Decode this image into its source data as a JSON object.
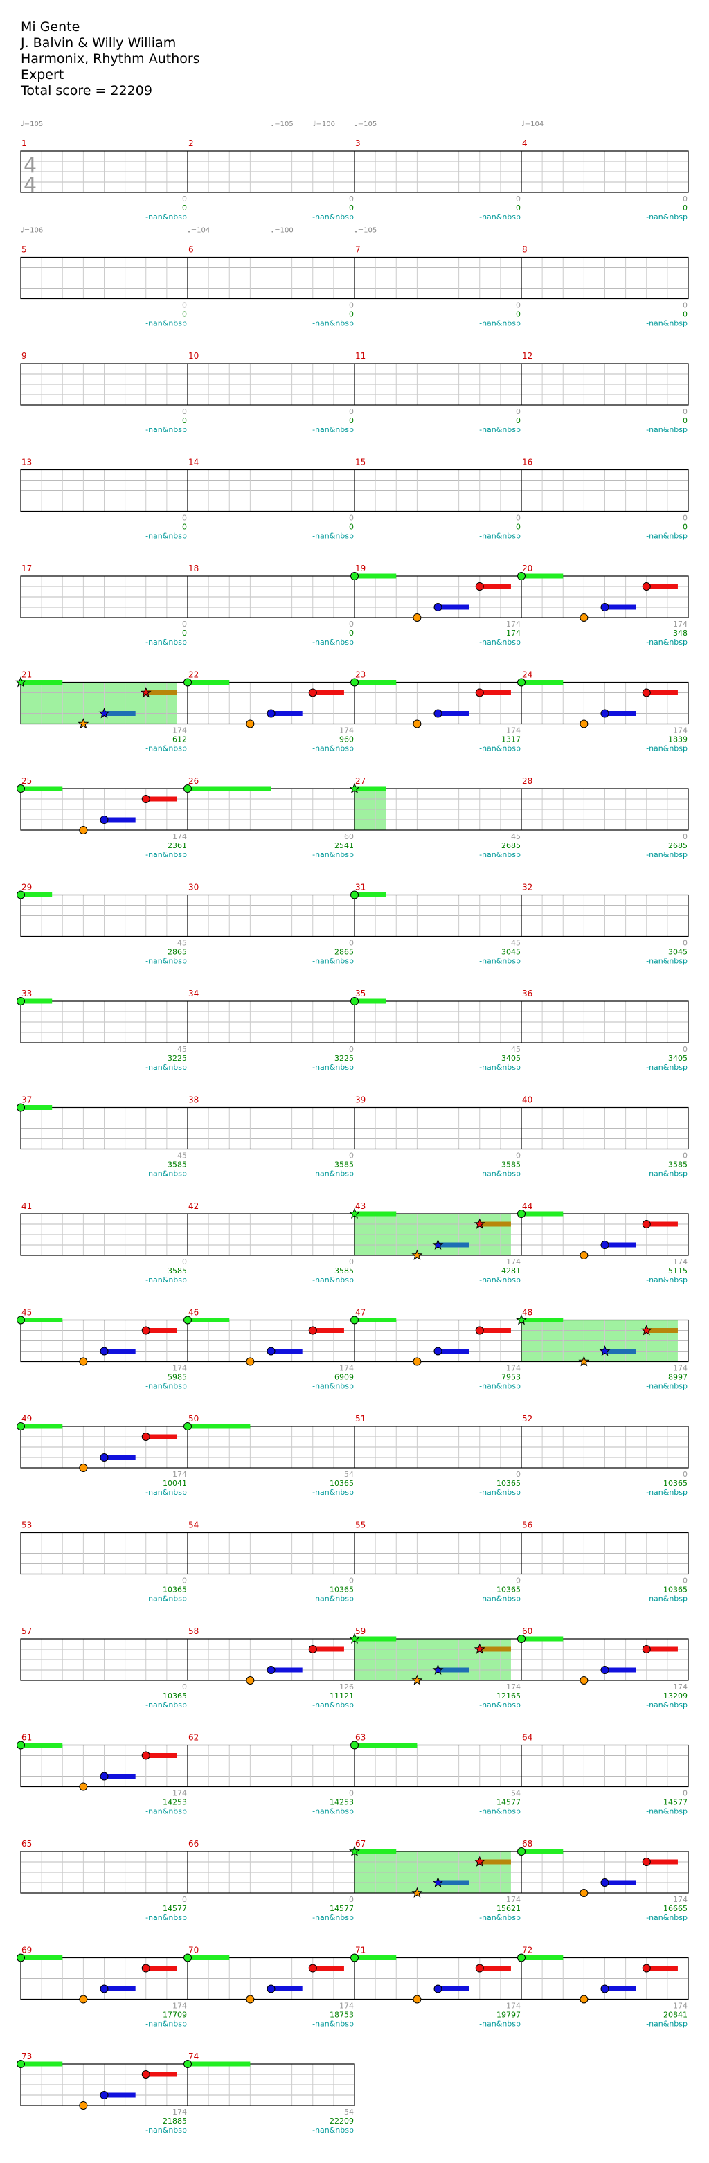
{
  "song": {
    "title": "Mi Gente",
    "artist": "J. Balvin & Willy William",
    "charter": "Harmonix, Rhythm Authors",
    "difficulty": "Expert",
    "total_score_text": "Total score = 22209"
  },
  "time_signature": "4/4",
  "colors": {
    "green": "#22ee22",
    "red": "#ee1111",
    "yellow": "#eeb800",
    "blue": "#1111dd",
    "orange": "#ff9900",
    "star_sustain_top": "#b8860b",
    "star_sustain_low": "#1e6eb4",
    "overdrive": "#88ee88",
    "measure_num": "#cc0000",
    "score": "#008000",
    "sub": "#009999",
    "tempo": "#888888",
    "staff": "#000000"
  },
  "tempo_marks": [
    {
      "measure": 1,
      "beat": 0,
      "label": "♩=105"
    },
    {
      "measure": 2,
      "beat": 2.0,
      "label": "♩=105"
    },
    {
      "measure": 2,
      "beat": 3.0,
      "label": "♩=100"
    },
    {
      "measure": 3,
      "beat": 0,
      "label": "♩=105"
    },
    {
      "measure": 4,
      "beat": 0,
      "label": "♩=104"
    },
    {
      "measure": 5,
      "beat": 0,
      "label": "♩=106"
    },
    {
      "measure": 6,
      "beat": 0,
      "label": "♩=104"
    },
    {
      "measure": 6,
      "beat": 2.0,
      "label": "♩=100"
    },
    {
      "measure": 7,
      "beat": 0,
      "label": "♩=105"
    }
  ],
  "sub_label": "-nan&nbsp",
  "measures": [
    {
      "n": 1,
      "t": 0,
      "s": "0"
    },
    {
      "n": 2,
      "t": 0,
      "s": "0"
    },
    {
      "n": 3,
      "t": 0,
      "s": "0"
    },
    {
      "n": 4,
      "t": 0,
      "s": "0"
    },
    {
      "n": 5,
      "t": 0,
      "s": "0"
    },
    {
      "n": 6,
      "t": 0,
      "s": "0"
    },
    {
      "n": 7,
      "t": 0,
      "s": "0"
    },
    {
      "n": 8,
      "t": 0,
      "s": "0"
    },
    {
      "n": 9,
      "t": 0,
      "s": "0"
    },
    {
      "n": 10,
      "t": 0,
      "s": "0"
    },
    {
      "n": 11,
      "t": 0,
      "s": "0"
    },
    {
      "n": 12,
      "t": 0,
      "s": "0"
    },
    {
      "n": 13,
      "t": 0,
      "s": "0"
    },
    {
      "n": 14,
      "t": 0,
      "s": "0"
    },
    {
      "n": 15,
      "t": 0,
      "s": "0"
    },
    {
      "n": 16,
      "t": 0,
      "s": "0"
    },
    {
      "n": 17,
      "t": 0,
      "s": "0"
    },
    {
      "n": 18,
      "t": 0,
      "s": "0"
    },
    {
      "n": 19,
      "t": 174,
      "s": "174"
    },
    {
      "n": 20,
      "t": 174,
      "s": "348"
    },
    {
      "n": 21,
      "t": 174,
      "s": "612"
    },
    {
      "n": 22,
      "t": 174,
      "s": "960"
    },
    {
      "n": 23,
      "t": 174,
      "s": "1317"
    },
    {
      "n": 24,
      "t": 174,
      "s": "1839"
    },
    {
      "n": 25,
      "t": 174,
      "s": "2361"
    },
    {
      "n": 26,
      "t": 60,
      "s": "2541"
    },
    {
      "n": 27,
      "t": 45,
      "s": "2685"
    },
    {
      "n": 28,
      "t": 0,
      "s": "2685"
    },
    {
      "n": 29,
      "t": 45,
      "s": "2865"
    },
    {
      "n": 30,
      "t": 0,
      "s": "2865"
    },
    {
      "n": 31,
      "t": 45,
      "s": "3045"
    },
    {
      "n": 32,
      "t": 0,
      "s": "3045"
    },
    {
      "n": 33,
      "t": 45,
      "s": "3225"
    },
    {
      "n": 34,
      "t": 0,
      "s": "3225"
    },
    {
      "n": 35,
      "t": 45,
      "s": "3405"
    },
    {
      "n": 36,
      "t": 0,
      "s": "3405"
    },
    {
      "n": 37,
      "t": 45,
      "s": "3585"
    },
    {
      "n": 38,
      "t": 0,
      "s": "3585"
    },
    {
      "n": 39,
      "t": 0,
      "s": "3585"
    },
    {
      "n": 40,
      "t": 0,
      "s": "3585"
    },
    {
      "n": 41,
      "t": 0,
      "s": "3585"
    },
    {
      "n": 42,
      "t": 0,
      "s": "3585"
    },
    {
      "n": 43,
      "t": 174,
      "s": "4281"
    },
    {
      "n": 44,
      "t": 174,
      "s": "5115"
    },
    {
      "n": 45,
      "t": 174,
      "s": "5985"
    },
    {
      "n": 46,
      "t": 174,
      "s": "6909"
    },
    {
      "n": 47,
      "t": 174,
      "s": "7953"
    },
    {
      "n": 48,
      "t": 174,
      "s": "8997"
    },
    {
      "n": 49,
      "t": 174,
      "s": "10041"
    },
    {
      "n": 50,
      "t": 54,
      "s": "10365"
    },
    {
      "n": 51,
      "t": 0,
      "s": "10365"
    },
    {
      "n": 52,
      "t": 0,
      "s": "10365"
    },
    {
      "n": 53,
      "t": 0,
      "s": "10365"
    },
    {
      "n": 54,
      "t": 0,
      "s": "10365"
    },
    {
      "n": 55,
      "t": 0,
      "s": "10365"
    },
    {
      "n": 56,
      "t": 0,
      "s": "10365"
    },
    {
      "n": 57,
      "t": 0,
      "s": "10365"
    },
    {
      "n": 58,
      "t": 126,
      "s": "11121"
    },
    {
      "n": 59,
      "t": 174,
      "s": "12165"
    },
    {
      "n": 60,
      "t": 174,
      "s": "13209"
    },
    {
      "n": 61,
      "t": 174,
      "s": "14253"
    },
    {
      "n": 62,
      "t": 0,
      "s": "14253"
    },
    {
      "n": 63,
      "t": 54,
      "s": "14577"
    },
    {
      "n": 64,
      "t": 0,
      "s": "14577"
    },
    {
      "n": 65,
      "t": 0,
      "s": "14577"
    },
    {
      "n": 66,
      "t": 0,
      "s": "14577"
    },
    {
      "n": 67,
      "t": 174,
      "s": "15621"
    },
    {
      "n": 68,
      "t": 174,
      "s": "16665"
    },
    {
      "n": 69,
      "t": 174,
      "s": "17709"
    },
    {
      "n": 70,
      "t": 174,
      "s": "18753"
    },
    {
      "n": 71,
      "t": 174,
      "s": "19797"
    },
    {
      "n": 72,
      "t": 174,
      "s": "20841"
    },
    {
      "n": 73,
      "t": 174,
      "s": "21885"
    },
    {
      "n": 74,
      "t": 54,
      "s": "22209"
    }
  ],
  "overdrive_phrases": [
    {
      "measure": 21,
      "from": 0,
      "to": 3.75
    },
    {
      "measure": 27,
      "from": 0,
      "to": 0.75
    },
    {
      "measure": 43,
      "from": 0,
      "to": 3.75
    },
    {
      "measure": 48,
      "from": 0,
      "to": 3.75
    },
    {
      "measure": 59,
      "from": 0,
      "to": 3.75
    },
    {
      "measure": 67,
      "from": 0,
      "to": 3.75
    }
  ],
  "notes": [
    {
      "m": 19,
      "b": 0,
      "lane": "green",
      "len": 1
    },
    {
      "m": 19,
      "b": 1.5,
      "lane": "orange"
    },
    {
      "m": 19,
      "b": 2,
      "lane": "blue",
      "len": 0.75
    },
    {
      "m": 19,
      "b": 3,
      "lane": "red",
      "len": 0.75
    },
    {
      "m": 20,
      "b": 0,
      "lane": "green",
      "len": 1
    },
    {
      "m": 20,
      "b": 1.5,
      "lane": "orange"
    },
    {
      "m": 20,
      "b": 2,
      "lane": "blue",
      "len": 0.75
    },
    {
      "m": 20,
      "b": 3,
      "lane": "red",
      "len": 0.75
    },
    {
      "m": 21,
      "b": 0,
      "lane": "green",
      "len": 1,
      "star": true
    },
    {
      "m": 21,
      "b": 1.5,
      "lane": "orange",
      "star": true
    },
    {
      "m": 21,
      "b": 2,
      "lane": "blue",
      "len": 0.75,
      "star": true
    },
    {
      "m": 21,
      "b": 3,
      "lane": "red",
      "len": 0.75,
      "star": true
    },
    {
      "m": 22,
      "b": 0,
      "lane": "green",
      "len": 1
    },
    {
      "m": 22,
      "b": 1.5,
      "lane": "orange"
    },
    {
      "m": 22,
      "b": 2,
      "lane": "blue",
      "len": 0.75
    },
    {
      "m": 22,
      "b": 3,
      "lane": "red",
      "len": 0.75
    },
    {
      "m": 23,
      "b": 0,
      "lane": "green",
      "len": 1
    },
    {
      "m": 23,
      "b": 1.5,
      "lane": "orange"
    },
    {
      "m": 23,
      "b": 2,
      "lane": "blue",
      "len": 0.75
    },
    {
      "m": 23,
      "b": 3,
      "lane": "red",
      "len": 0.75
    },
    {
      "m": 24,
      "b": 0,
      "lane": "green",
      "len": 1
    },
    {
      "m": 24,
      "b": 1.5,
      "lane": "orange"
    },
    {
      "m": 24,
      "b": 2,
      "lane": "blue",
      "len": 0.75
    },
    {
      "m": 24,
      "b": 3,
      "lane": "red",
      "len": 0.75
    },
    {
      "m": 25,
      "b": 0,
      "lane": "green",
      "len": 1
    },
    {
      "m": 25,
      "b": 1.5,
      "lane": "orange"
    },
    {
      "m": 25,
      "b": 2,
      "lane": "blue",
      "len": 0.75
    },
    {
      "m": 25,
      "b": 3,
      "lane": "red",
      "len": 0.75
    },
    {
      "m": 26,
      "b": 0,
      "lane": "green",
      "len": 2
    },
    {
      "m": 27,
      "b": 0,
      "lane": "green",
      "len": 0.75,
      "star": true
    },
    {
      "m": 29,
      "b": 0,
      "lane": "green",
      "len": 0.75
    },
    {
      "m": 31,
      "b": 0,
      "lane": "green",
      "len": 0.75
    },
    {
      "m": 33,
      "b": 0,
      "lane": "green",
      "len": 0.75
    },
    {
      "m": 35,
      "b": 0,
      "lane": "green",
      "len": 0.75
    },
    {
      "m": 37,
      "b": 0,
      "lane": "green",
      "len": 0.75
    },
    {
      "m": 43,
      "b": 0,
      "lane": "green",
      "len": 1,
      "star": true
    },
    {
      "m": 43,
      "b": 1.5,
      "lane": "orange",
      "star": true
    },
    {
      "m": 43,
      "b": 2,
      "lane": "blue",
      "len": 0.75,
      "star": true
    },
    {
      "m": 43,
      "b": 3,
      "lane": "red",
      "len": 0.75,
      "star": true
    },
    {
      "m": 44,
      "b": 0,
      "lane": "green",
      "len": 1
    },
    {
      "m": 44,
      "b": 1.5,
      "lane": "orange"
    },
    {
      "m": 44,
      "b": 2,
      "lane": "blue",
      "len": 0.75
    },
    {
      "m": 44,
      "b": 3,
      "lane": "red",
      "len": 0.75
    },
    {
      "m": 45,
      "b": 0,
      "lane": "green",
      "len": 1
    },
    {
      "m": 45,
      "b": 1.5,
      "lane": "orange"
    },
    {
      "m": 45,
      "b": 2,
      "lane": "blue",
      "len": 0.75
    },
    {
      "m": 45,
      "b": 3,
      "lane": "red",
      "len": 0.75
    },
    {
      "m": 46,
      "b": 0,
      "lane": "green",
      "len": 1
    },
    {
      "m": 46,
      "b": 1.5,
      "lane": "orange"
    },
    {
      "m": 46,
      "b": 2,
      "lane": "blue",
      "len": 0.75
    },
    {
      "m": 46,
      "b": 3,
      "lane": "red",
      "len": 0.75
    },
    {
      "m": 47,
      "b": 0,
      "lane": "green",
      "len": 1
    },
    {
      "m": 47,
      "b": 1.5,
      "lane": "orange"
    },
    {
      "m": 47,
      "b": 2,
      "lane": "blue",
      "len": 0.75
    },
    {
      "m": 47,
      "b": 3,
      "lane": "red",
      "len": 0.75
    },
    {
      "m": 48,
      "b": 0,
      "lane": "green",
      "len": 1,
      "star": true
    },
    {
      "m": 48,
      "b": 1.5,
      "lane": "orange",
      "star": true
    },
    {
      "m": 48,
      "b": 2,
      "lane": "blue",
      "len": 0.75,
      "star": true
    },
    {
      "m": 48,
      "b": 3,
      "lane": "red",
      "len": 0.75,
      "star": true
    },
    {
      "m": 49,
      "b": 0,
      "lane": "green",
      "len": 1
    },
    {
      "m": 49,
      "b": 1.5,
      "lane": "orange"
    },
    {
      "m": 49,
      "b": 2,
      "lane": "blue",
      "len": 0.75
    },
    {
      "m": 49,
      "b": 3,
      "lane": "red",
      "len": 0.75
    },
    {
      "m": 50,
      "b": 0,
      "lane": "green",
      "len": 1.5
    },
    {
      "m": 58,
      "b": 1.5,
      "lane": "orange"
    },
    {
      "m": 58,
      "b": 2,
      "lane": "blue",
      "len": 0.75
    },
    {
      "m": 58,
      "b": 3,
      "lane": "red",
      "len": 0.75
    },
    {
      "m": 59,
      "b": 0,
      "lane": "green",
      "len": 1,
      "star": true
    },
    {
      "m": 59,
      "b": 1.5,
      "lane": "orange",
      "star": true
    },
    {
      "m": 59,
      "b": 2,
      "lane": "blue",
      "len": 0.75,
      "star": true
    },
    {
      "m": 59,
      "b": 3,
      "lane": "red",
      "len": 0.75,
      "star": true
    },
    {
      "m": 60,
      "b": 0,
      "lane": "green",
      "len": 1
    },
    {
      "m": 60,
      "b": 1.5,
      "lane": "orange"
    },
    {
      "m": 60,
      "b": 2,
      "lane": "blue",
      "len": 0.75
    },
    {
      "m": 60,
      "b": 3,
      "lane": "red",
      "len": 0.75
    },
    {
      "m": 61,
      "b": 0,
      "lane": "green",
      "len": 1
    },
    {
      "m": 61,
      "b": 1.5,
      "lane": "orange"
    },
    {
      "m": 61,
      "b": 2,
      "lane": "blue",
      "len": 0.75
    },
    {
      "m": 61,
      "b": 3,
      "lane": "red",
      "len": 0.75
    },
    {
      "m": 63,
      "b": 0,
      "lane": "green",
      "len": 1.5
    },
    {
      "m": 67,
      "b": 0,
      "lane": "green",
      "len": 1,
      "star": true
    },
    {
      "m": 67,
      "b": 1.5,
      "lane": "orange",
      "star": true
    },
    {
      "m": 67,
      "b": 2,
      "lane": "blue",
      "len": 0.75,
      "star": true
    },
    {
      "m": 67,
      "b": 3,
      "lane": "red",
      "len": 0.75,
      "star": true
    },
    {
      "m": 68,
      "b": 0,
      "lane": "green",
      "len": 1
    },
    {
      "m": 68,
      "b": 1.5,
      "lane": "orange"
    },
    {
      "m": 68,
      "b": 2,
      "lane": "blue",
      "len": 0.75
    },
    {
      "m": 68,
      "b": 3,
      "lane": "red",
      "len": 0.75
    },
    {
      "m": 69,
      "b": 0,
      "lane": "green",
      "len": 1
    },
    {
      "m": 69,
      "b": 1.5,
      "lane": "orange"
    },
    {
      "m": 69,
      "b": 2,
      "lane": "blue",
      "len": 0.75
    },
    {
      "m": 69,
      "b": 3,
      "lane": "red",
      "len": 0.75
    },
    {
      "m": 70,
      "b": 0,
      "lane": "green",
      "len": 1
    },
    {
      "m": 70,
      "b": 1.5,
      "lane": "orange"
    },
    {
      "m": 70,
      "b": 2,
      "lane": "blue",
      "len": 0.75
    },
    {
      "m": 70,
      "b": 3,
      "lane": "red",
      "len": 0.75
    },
    {
      "m": 71,
      "b": 0,
      "lane": "green",
      "len": 1
    },
    {
      "m": 71,
      "b": 1.5,
      "lane": "orange"
    },
    {
      "m": 71,
      "b": 2,
      "lane": "blue",
      "len": 0.75
    },
    {
      "m": 71,
      "b": 3,
      "lane": "red",
      "len": 0.75
    },
    {
      "m": 72,
      "b": 0,
      "lane": "green",
      "len": 1
    },
    {
      "m": 72,
      "b": 1.5,
      "lane": "orange"
    },
    {
      "m": 72,
      "b": 2,
      "lane": "blue",
      "len": 0.75
    },
    {
      "m": 72,
      "b": 3,
      "lane": "red",
      "len": 0.75
    },
    {
      "m": 73,
      "b": 0,
      "lane": "green",
      "len": 1
    },
    {
      "m": 73,
      "b": 1.5,
      "lane": "orange"
    },
    {
      "m": 73,
      "b": 2,
      "lane": "blue",
      "len": 0.75
    },
    {
      "m": 73,
      "b": 3,
      "lane": "red",
      "len": 0.75
    },
    {
      "m": 74,
      "b": 0,
      "lane": "green",
      "len": 1.5
    }
  ]
}
